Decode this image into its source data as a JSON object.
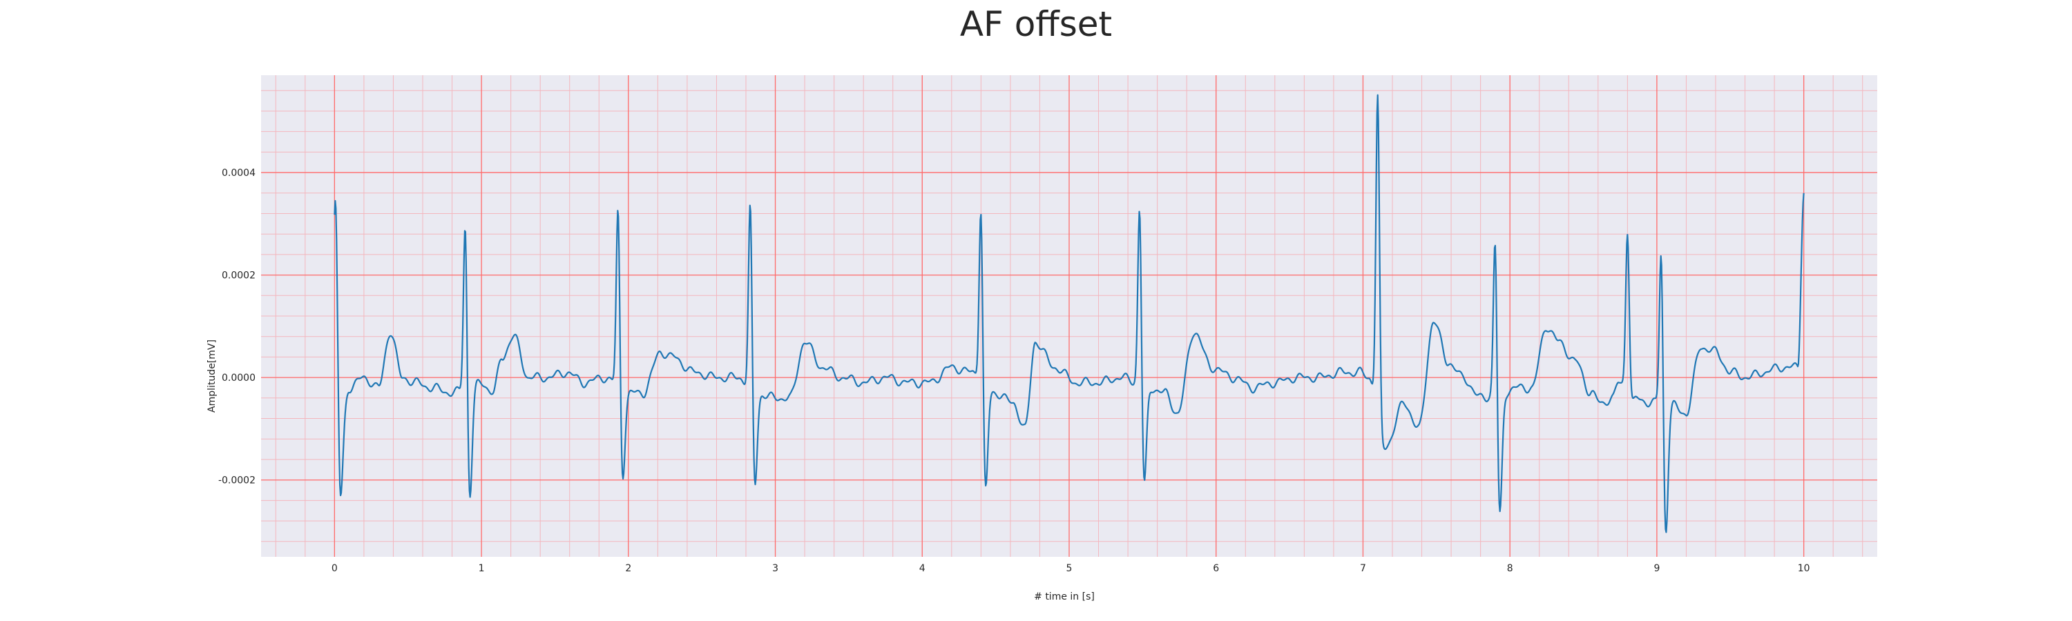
{
  "chart_data": {
    "type": "line",
    "title": "AF offset",
    "xlabel": "# time in [s]",
    "ylabel": "Amplitude[mV]",
    "xlim": [
      -0.5,
      10.5
    ],
    "ylim": [
      -0.00035,
      0.00059
    ],
    "xticks": [
      0,
      1,
      2,
      3,
      4,
      5,
      6,
      7,
      8,
      9,
      10
    ],
    "xtick_labels": [
      "0",
      "1",
      "2",
      "3",
      "4",
      "5",
      "6",
      "7",
      "8",
      "9",
      "10"
    ],
    "yticks": [
      -0.0002,
      0.0,
      0.0002,
      0.0004
    ],
    "ytick_labels": [
      "-0.0002",
      "0.0000",
      "0.0002",
      "0.0004"
    ],
    "x_minor_step": 0.2,
    "y_minor_step": 4e-05,
    "grid": true,
    "colors": {
      "line": "#1f77b4",
      "plot_background": "#eaeaf2",
      "major_grid": "#ff6b6b",
      "minor_grid": "#f4b6bd"
    },
    "baseline_points": [
      [
        0.0,
        0.00017
      ],
      [
        0.04,
        -0.0001
      ],
      [
        0.1,
        -2e-05
      ],
      [
        0.2,
        0.0
      ],
      [
        0.3,
        -2e-05
      ],
      [
        0.38,
        9e-05
      ],
      [
        0.46,
        0.0
      ],
      [
        0.55,
        -1e-05
      ],
      [
        0.66,
        -2e-05
      ],
      [
        0.8,
        -3e-05
      ],
      [
        0.93,
        -2e-05
      ],
      [
        1.0,
        -1e-05
      ],
      [
        1.08,
        -3e-05
      ],
      [
        1.14,
        4e-05
      ],
      [
        1.22,
        8e-05
      ],
      [
        1.32,
        0.0
      ],
      [
        1.45,
        0.0
      ],
      [
        1.58,
        1e-05
      ],
      [
        1.7,
        -1e-05
      ],
      [
        1.84,
        0.0
      ],
      [
        1.99,
        -3e-05
      ],
      [
        2.1,
        -3e-05
      ],
      [
        2.22,
        5e-05
      ],
      [
        2.3,
        4e-05
      ],
      [
        2.45,
        1e-05
      ],
      [
        2.6,
        0.0
      ],
      [
        2.75,
        0.0
      ],
      [
        2.87,
        -3e-05
      ],
      [
        3.0,
        -4e-05
      ],
      [
        3.1,
        -4e-05
      ],
      [
        3.2,
        7e-05
      ],
      [
        3.32,
        2e-05
      ],
      [
        3.45,
        0.0
      ],
      [
        3.6,
        -1e-05
      ],
      [
        3.75,
        0.0
      ],
      [
        3.9,
        -1e-05
      ],
      [
        4.05,
        -1e-05
      ],
      [
        4.2,
        2e-05
      ],
      [
        4.34,
        1e-05
      ],
      [
        4.5,
        -3e-05
      ],
      [
        4.62,
        -5e-05
      ],
      [
        4.7,
        -0.0001
      ],
      [
        4.77,
        7e-05
      ],
      [
        4.9,
        2e-05
      ],
      [
        5.05,
        -1e-05
      ],
      [
        5.2,
        -1e-05
      ],
      [
        5.35,
        0.0
      ],
      [
        5.55,
        -2e-05
      ],
      [
        5.65,
        -3e-05
      ],
      [
        5.74,
        -7e-05
      ],
      [
        5.85,
        9e-05
      ],
      [
        5.97,
        2e-05
      ],
      [
        6.12,
        0.0
      ],
      [
        6.25,
        -2e-05
      ],
      [
        6.4,
        -1e-05
      ],
      [
        6.55,
        0.0
      ],
      [
        6.7,
        0.0
      ],
      [
        6.85,
        1e-05
      ],
      [
        6.98,
        1e-05
      ],
      [
        7.04,
        0.0
      ],
      [
        7.16,
        -0.00013
      ],
      [
        7.28,
        -5e-05
      ],
      [
        7.38,
        -0.0001
      ],
      [
        7.48,
        0.00011
      ],
      [
        7.58,
        3e-05
      ],
      [
        7.68,
        0.0
      ],
      [
        7.8,
        -4e-05
      ],
      [
        7.94,
        -3e-05
      ],
      [
        8.05,
        -2e-05
      ],
      [
        8.15,
        -2e-05
      ],
      [
        8.25,
        0.0001
      ],
      [
        8.33,
        7e-05
      ],
      [
        8.45,
        3e-05
      ],
      [
        8.55,
        -3e-05
      ],
      [
        8.62,
        -5e-05
      ],
      [
        8.7,
        -4e-05
      ],
      [
        8.74,
        -1e-05
      ],
      [
        8.86,
        -4e-05
      ],
      [
        8.96,
        -5e-05
      ],
      [
        9.08,
        -5e-05
      ],
      [
        9.2,
        -7e-05
      ],
      [
        9.3,
        6e-05
      ],
      [
        9.4,
        5e-05
      ],
      [
        9.5,
        1e-05
      ],
      [
        9.62,
        0.0
      ],
      [
        9.72,
        1e-05
      ],
      [
        9.85,
        2e-05
      ],
      [
        9.96,
        2e-05
      ],
      [
        10.0,
        0.00036
      ]
    ],
    "spikes": [
      {
        "t": 0.01,
        "peak": 0.00034,
        "trough": -0.00024
      },
      {
        "t": 0.89,
        "peak": 0.00033,
        "trough": -0.00024
      },
      {
        "t": 1.93,
        "peak": 0.00035,
        "trough": -0.0002
      },
      {
        "t": 2.83,
        "peak": 0.00036,
        "trough": -0.00022
      },
      {
        "t": 4.4,
        "peak": 0.00036,
        "trough": -0.00023
      },
      {
        "t": 5.48,
        "peak": 0.00036,
        "trough": -0.00022
      },
      {
        "t": 7.1,
        "peak": 0.00055,
        "trough": -0.00013
      },
      {
        "t": 7.9,
        "peak": 0.0003,
        "trough": -0.00028
      },
      {
        "t": 8.8,
        "peak": 0.00029,
        "trough": -5e-05
      },
      {
        "t": 9.03,
        "peak": 0.00028,
        "trough": -0.00031
      }
    ]
  }
}
